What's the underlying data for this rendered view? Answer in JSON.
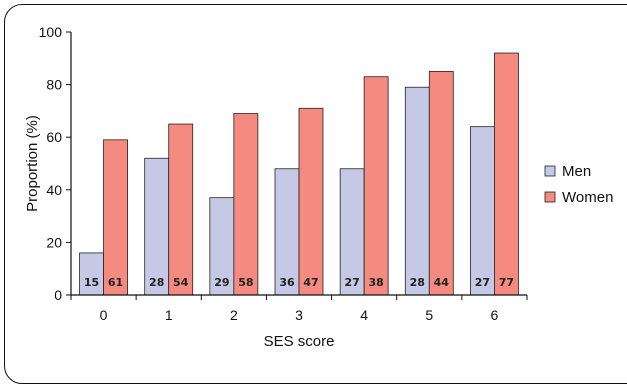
{
  "chart_data": {
    "type": "bar",
    "categories": [
      "0",
      "1",
      "2",
      "3",
      "4",
      "5",
      "6"
    ],
    "series": [
      {
        "name": "Men",
        "values": [
          16,
          52,
          37,
          48,
          48,
          79,
          64
        ],
        "counts": [
          "15",
          "28",
          "29",
          "36",
          "27",
          "28",
          "27"
        ],
        "color": "#c5c9e6"
      },
      {
        "name": "Women",
        "values": [
          59,
          65,
          69,
          71,
          83,
          85,
          92
        ],
        "counts": [
          "61",
          "54",
          "58",
          "47",
          "38",
          "44",
          "77"
        ],
        "color": "#f58a80"
      }
    ],
    "xlabel": "SES score",
    "ylabel": "Proportion (%)",
    "ylim": [
      0,
      100
    ],
    "yticks": [
      "0",
      "20",
      "40",
      "60",
      "80",
      "100"
    ],
    "grid": false,
    "legend_position": "right"
  }
}
